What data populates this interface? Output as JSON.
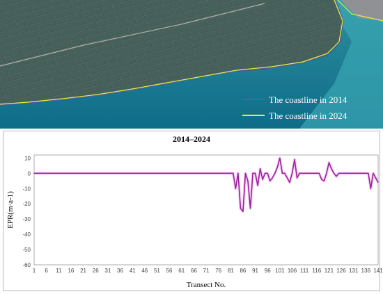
{
  "map": {
    "legend": [
      {
        "label": "The coastline in 2014",
        "color": "#5a5aa8"
      },
      {
        "label": "The coastline in 2024",
        "color": "#e6f03a"
      }
    ],
    "colors": {
      "land": "#3f5a55",
      "field_pink": "#b47a8a",
      "sea_near": "#2c8f9c",
      "sea_far": "#0f6c8a",
      "sea_right": "#3aa6b4"
    }
  },
  "chart_data": {
    "type": "line",
    "title": "2014–2024",
    "xlabel": "Transect No.",
    "ylabel": "EPR(m·a-1)",
    "ylim": [
      -60,
      12
    ],
    "yticks": [
      10,
      0,
      -10,
      -20,
      -30,
      -40,
      -50,
      -60
    ],
    "xlim": [
      1,
      141
    ],
    "xticks": [
      1,
      6,
      11,
      16,
      21,
      26,
      31,
      36,
      41,
      46,
      51,
      56,
      61,
      66,
      71,
      76,
      81,
      86,
      91,
      96,
      101,
      106,
      111,
      116,
      121,
      126,
      131,
      136,
      141
    ],
    "grid": false,
    "series": [
      {
        "color": "#a020a0",
        "x": [
          1,
          82,
          83,
          84,
          85,
          86,
          87,
          88,
          89,
          90,
          91,
          92,
          93,
          94,
          95,
          96,
          97,
          98,
          99,
          100,
          101,
          102,
          103,
          104,
          105,
          106,
          107,
          108,
          109,
          110,
          111,
          112,
          113,
          114,
          115,
          116,
          117,
          118,
          119,
          120,
          121,
          122,
          123,
          124,
          125,
          126,
          127,
          128,
          129,
          130,
          131,
          132,
          133,
          134,
          135,
          136,
          137,
          138,
          139,
          140,
          141
        ],
        "y": [
          0,
          0,
          -10,
          0,
          -23,
          -25,
          0,
          -5,
          -23,
          0,
          0,
          -8,
          3,
          -4,
          0,
          0,
          -5,
          -3,
          0,
          4,
          10,
          0,
          0,
          -3,
          -6,
          0,
          9,
          -3,
          0,
          0,
          0,
          0,
          0,
          0,
          0,
          0,
          0,
          -4,
          -5,
          0,
          7,
          3,
          0,
          -2,
          0,
          0,
          0,
          0,
          0,
          0,
          0,
          0,
          0,
          0,
          0,
          0,
          0,
          -10,
          0,
          -3,
          -6
        ]
      }
    ]
  }
}
